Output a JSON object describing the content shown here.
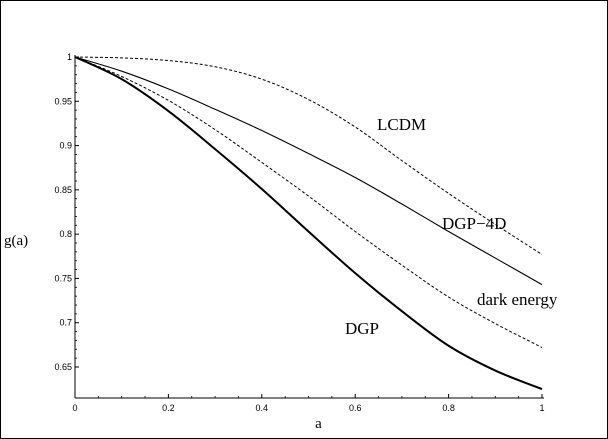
{
  "chart_data": {
    "type": "line",
    "title": "",
    "xlabel": "a",
    "ylabel": "g(a)",
    "xlim": [
      0,
      1
    ],
    "ylim": [
      0.615,
      1.0
    ],
    "grid": false,
    "legend": "none",
    "x_ticks": [
      "0",
      "0.2",
      "0.4",
      "0.6",
      "0.8",
      "1"
    ],
    "y_ticks": [
      "0.65",
      "0.7",
      "0.75",
      "0.8",
      "0.85",
      "0.9",
      "0.95",
      "1"
    ],
    "x": [
      0,
      0.1,
      0.2,
      0.3,
      0.4,
      0.5,
      0.6,
      0.7,
      0.8,
      0.9,
      1.0
    ],
    "series": [
      {
        "name": "LCDM",
        "style": "dashed",
        "values": [
          1.0,
          0.999,
          0.996,
          0.989,
          0.975,
          0.952,
          0.921,
          0.883,
          0.846,
          0.811,
          0.777
        ]
      },
      {
        "name": "DGP−4D",
        "style": "solid",
        "values": [
          1.0,
          0.984,
          0.964,
          0.941,
          0.917,
          0.891,
          0.864,
          0.834,
          0.803,
          0.773,
          0.743
        ]
      },
      {
        "name": "dark energy",
        "style": "dashed",
        "values": [
          1.0,
          0.978,
          0.951,
          0.918,
          0.881,
          0.843,
          0.803,
          0.765,
          0.729,
          0.699,
          0.672
        ]
      },
      {
        "name": "DGP",
        "style": "bold",
        "values": [
          1.0,
          0.975,
          0.939,
          0.896,
          0.851,
          0.803,
          0.756,
          0.713,
          0.674,
          0.646,
          0.625
        ]
      }
    ]
  }
}
